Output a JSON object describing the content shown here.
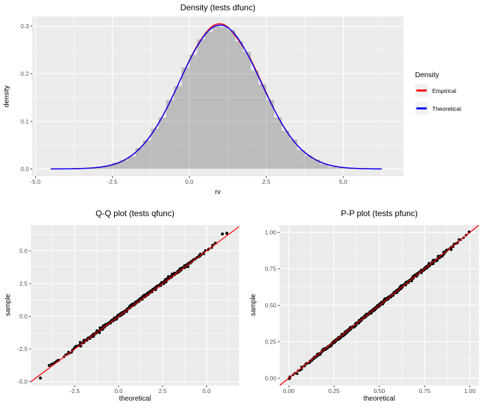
{
  "figure": {
    "background": "#FFFFFF",
    "panel_background": "#EBEBEB",
    "grid_color": "#FFFFFF",
    "tick_mark_color": "#333333",
    "tick_label_color": "#4D4D4D",
    "point_color": "#000000",
    "histogram_fill": "rgba(70,70,70,0.28)",
    "legend_key_fill": "#F2F2F2"
  },
  "chart_data": [
    {
      "type": "area",
      "title": "Density (tests dfunc)",
      "xlabel": "rv",
      "ylabel": "density",
      "xlim": [
        -5.1,
        6.95
      ],
      "ylim": [
        -0.0152,
        0.3202
      ],
      "x_ticks": [
        -5.0,
        -2.5,
        0.0,
        2.5,
        5.0
      ],
      "x_tick_labels": [
        "-5.0",
        "-2.5",
        "0.0",
        "2.5",
        "5.0"
      ],
      "y_ticks": [
        0.0,
        0.1,
        0.2,
        0.3
      ],
      "y_tick_labels": [
        "0.0",
        "0.1",
        "0.2",
        "0.3"
      ],
      "grid": true,
      "legend": {
        "title": "Density",
        "position": "right",
        "entries": [
          {
            "label": "Empirical",
            "color": "#FF0000"
          },
          {
            "label": "Theoretical",
            "color": "#0000FF"
          }
        ]
      },
      "histogram": {
        "bin_start": -4.5,
        "bin_width": 0.25,
        "densities": [
          0.0005,
          0.0005,
          0.0008,
          0.001,
          0.001,
          0.002,
          0.005,
          0.007,
          0.013,
          0.018,
          0.026,
          0.044,
          0.06,
          0.085,
          0.108,
          0.145,
          0.174,
          0.213,
          0.24,
          0.272,
          0.288,
          0.302,
          0.298,
          0.292,
          0.268,
          0.246,
          0.207,
          0.178,
          0.145,
          0.108,
          0.08,
          0.062,
          0.04,
          0.028,
          0.019,
          0.01,
          0.004,
          0.002,
          0.001,
          0.001,
          0.0008,
          0.0005,
          0.0005
        ]
      },
      "curve_x": [
        -4.5,
        -4.25,
        -4.0,
        -3.75,
        -3.5,
        -3.25,
        -3.0,
        -2.75,
        -2.5,
        -2.25,
        -2.0,
        -1.75,
        -1.5,
        -1.25,
        -1.0,
        -0.75,
        -0.5,
        -0.25,
        0.0,
        0.25,
        0.5,
        0.75,
        1.0,
        1.25,
        1.5,
        1.75,
        2.0,
        2.25,
        2.5,
        2.75,
        3.0,
        3.25,
        3.5,
        3.75,
        4.0,
        4.25,
        4.5,
        4.75,
        5.0,
        5.25,
        5.5,
        5.75,
        6.0,
        6.25
      ],
      "series": [
        {
          "name": "Empirical",
          "color": "#FF0000",
          "y": [
            0.0002,
            0.0002,
            0.0003,
            0.0006,
            0.001,
            0.0018,
            0.003,
            0.0052,
            0.0085,
            0.014,
            0.0225,
            0.035,
            0.051,
            0.0712,
            0.0962,
            0.125,
            0.158,
            0.1935,
            0.228,
            0.2585,
            0.283,
            0.3,
            0.305,
            0.298,
            0.279,
            0.256,
            0.229,
            0.195,
            0.16,
            0.126,
            0.095,
            0.07,
            0.05,
            0.035,
            0.0235,
            0.015,
            0.0088,
            0.005,
            0.0028,
            0.0015,
            0.0008,
            0.0004,
            0.0002,
            0.0001
          ]
        },
        {
          "name": "Theoretical",
          "color": "#0000FF",
          "y": [
            0.0001,
            0.0001,
            0.0002,
            0.0005,
            0.0009,
            0.0017,
            0.0031,
            0.0054,
            0.009,
            0.0146,
            0.0229,
            0.0345,
            0.0503,
            0.0707,
            0.0959,
            0.1255,
            0.1585,
            0.1931,
            0.2269,
            0.2572,
            0.2814,
            0.2969,
            0.3023,
            0.2969,
            0.2814,
            0.2572,
            0.2269,
            0.1931,
            0.1585,
            0.1255,
            0.0959,
            0.0707,
            0.0503,
            0.0345,
            0.0229,
            0.0146,
            0.009,
            0.0054,
            0.0031,
            0.0017,
            0.0009,
            0.0005,
            0.0002,
            0.0001
          ]
        }
      ],
      "distribution_note": "normal mean 1, sd 1.32"
    },
    {
      "type": "scatter",
      "title": "Q-Q plot (tests qfunc)",
      "xlabel": "theoretical",
      "ylabel": "sample",
      "xlim": [
        -4.99,
        6.85
      ],
      "ylim": [
        -5.28,
        6.96
      ],
      "x_ticks": [
        -2.5,
        0.0,
        2.5,
        5.0
      ],
      "x_tick_labels": [
        "-2.5",
        "0.0",
        "2.5",
        "5.0"
      ],
      "y_ticks": [
        -5.0,
        -2.5,
        0.0,
        2.5,
        5.0
      ],
      "y_tick_labels": [
        "-5.0",
        "-2.5",
        "0.0",
        "2.5",
        "5.0"
      ],
      "grid": true,
      "point_band": {
        "from": [
          -3.35,
          -3.32
        ],
        "to": [
          5.45,
          5.5
        ],
        "count": 420,
        "spread": 0.055,
        "radius": 1.8
      },
      "outliers": [
        [
          -4.45,
          -4.72
        ],
        [
          -3.95,
          -3.75
        ],
        [
          -3.8,
          -3.65
        ],
        [
          -3.65,
          -3.55
        ],
        [
          -3.52,
          -3.42
        ],
        [
          -3.42,
          -3.36
        ],
        [
          5.35,
          5.42
        ],
        [
          5.5,
          5.58
        ],
        [
          5.9,
          6.28
        ],
        [
          6.15,
          6.33
        ]
      ],
      "line": {
        "color": "#FF0000",
        "slope": 1.0,
        "intercept": 0.0,
        "width": 1.3
      }
    },
    {
      "type": "scatter",
      "title": "P-P plot (tests pfunc)",
      "xlabel": "theoretical",
      "ylabel": "sample",
      "xlim": [
        -0.05,
        1.05
      ],
      "ylim": [
        -0.05,
        1.05
      ],
      "x_ticks": [
        0.0,
        0.25,
        0.5,
        0.75,
        1.0
      ],
      "x_tick_labels": [
        "0.00",
        "0.25",
        "0.50",
        "0.75",
        "1.00"
      ],
      "y_ticks": [
        0.0,
        0.25,
        0.5,
        0.75,
        1.0
      ],
      "y_tick_labels": [
        "0.00",
        "0.25",
        "0.50",
        "0.75",
        "1.00"
      ],
      "grid": true,
      "point_band": {
        "from": [
          0.002,
          0.0
        ],
        "to": [
          0.998,
          1.0
        ],
        "count": 520,
        "spread": 0.0045,
        "radius": 1.8
      },
      "outliers": [
        [
          0.003,
          -0.003
        ],
        [
          0.007,
          0.008
        ],
        [
          0.996,
          1.003
        ]
      ],
      "line": {
        "color": "#FF0000",
        "slope": 1.0,
        "intercept": 0.0,
        "width": 1.3
      }
    }
  ]
}
